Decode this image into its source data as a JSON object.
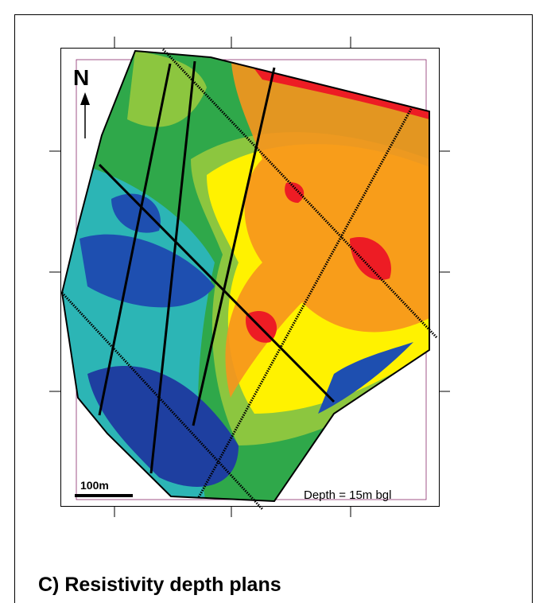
{
  "map": {
    "north_label": "N",
    "scale_label": "100m",
    "depth_label": "Depth = 15m bgl"
  },
  "caption": "C) Resistivity depth plans"
}
